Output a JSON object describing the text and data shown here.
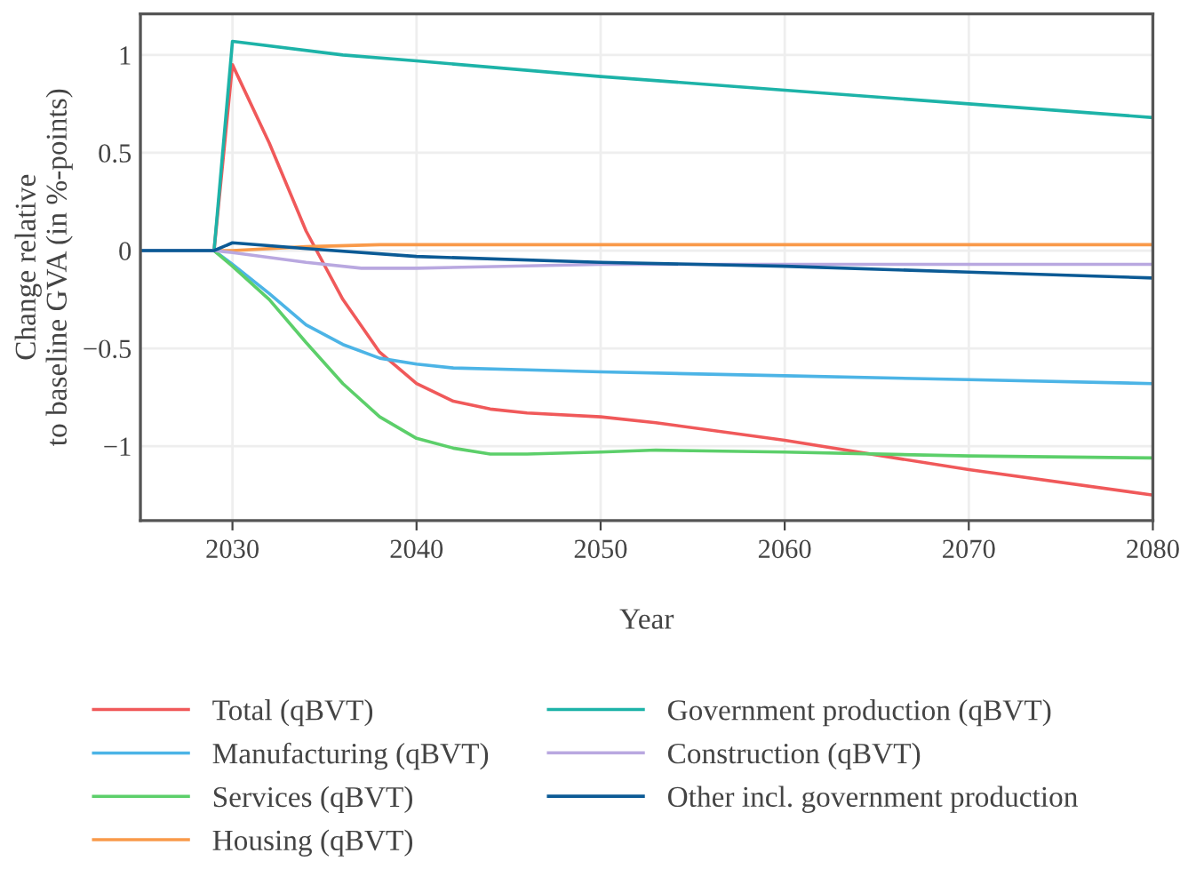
{
  "chart_data": {
    "type": "line",
    "xlabel": "Year",
    "ylabel": "Change relative\nto baseline GVA (in %-points)",
    "xlim": [
      2025,
      2080
    ],
    "xticks": [
      2030,
      2040,
      2050,
      2060,
      2070,
      2080
    ],
    "ylim": [
      -1.38,
      1.21
    ],
    "yticks": [
      {
        "value": -1,
        "label": "−1"
      },
      {
        "value": -0.5,
        "label": "−0.5"
      },
      0,
      0.5,
      1
    ],
    "grid": true,
    "legend": "bottom",
    "line_style": "solid",
    "marker": "none",
    "series": [
      {
        "name": "Total (qBVT)",
        "color": "#f0595a",
        "x": [
          2025,
          2029,
          2030,
          2032,
          2034,
          2036,
          2038,
          2040,
          2042,
          2044,
          2046,
          2050,
          2053,
          2060,
          2070,
          2080
        ],
        "values": [
          0,
          0,
          0.95,
          0.55,
          0.1,
          -0.25,
          -0.52,
          -0.68,
          -0.77,
          -0.81,
          -0.83,
          -0.85,
          -0.88,
          -0.97,
          -1.12,
          -1.25
        ]
      },
      {
        "name": "Manufacturing (qBVT)",
        "color": "#4cb4e6",
        "x": [
          2025,
          2029,
          2030,
          2032,
          2034,
          2036,
          2038,
          2040,
          2042,
          2046,
          2050,
          2060,
          2070,
          2080
        ],
        "values": [
          0,
          0,
          -0.07,
          -0.22,
          -0.38,
          -0.48,
          -0.55,
          -0.58,
          -0.6,
          -0.61,
          -0.62,
          -0.64,
          -0.66,
          -0.68
        ]
      },
      {
        "name": "Services (qBVT)",
        "color": "#5ccf6a",
        "x": [
          2025,
          2029,
          2030,
          2032,
          2034,
          2036,
          2038,
          2040,
          2042,
          2044,
          2046,
          2050,
          2053,
          2060,
          2070,
          2080
        ],
        "values": [
          0,
          0,
          -0.08,
          -0.25,
          -0.47,
          -0.68,
          -0.85,
          -0.96,
          -1.01,
          -1.04,
          -1.04,
          -1.03,
          -1.02,
          -1.03,
          -1.05,
          -1.06
        ]
      },
      {
        "name": "Housing (qBVT)",
        "color": "#f99a4a",
        "x": [
          2025,
          2029,
          2030,
          2034,
          2038,
          2080
        ],
        "values": [
          0,
          0,
          0,
          0.02,
          0.03,
          0.03
        ]
      },
      {
        "name": "Government production (qBVT)",
        "color": "#1db3a8",
        "x": [
          2025,
          2029,
          2030,
          2036,
          2040,
          2050,
          2060,
          2070,
          2080
        ],
        "values": [
          0,
          0,
          1.07,
          1.0,
          0.97,
          0.89,
          0.82,
          0.75,
          0.68
        ]
      },
      {
        "name": "Construction (qBVT)",
        "color": "#b9a8e0",
        "x": [
          2025,
          2029,
          2030,
          2034,
          2037,
          2040,
          2050,
          2080
        ],
        "values": [
          0,
          0,
          -0.01,
          -0.06,
          -0.09,
          -0.09,
          -0.07,
          -0.07
        ]
      },
      {
        "name": "Other incl. government production",
        "color": "#0b5a95",
        "x": [
          2025,
          2029,
          2030,
          2034,
          2040,
          2050,
          2060,
          2070,
          2080
        ],
        "values": [
          0,
          0,
          0.04,
          0.01,
          -0.03,
          -0.06,
          -0.08,
          -0.11,
          -0.14
        ]
      }
    ]
  }
}
